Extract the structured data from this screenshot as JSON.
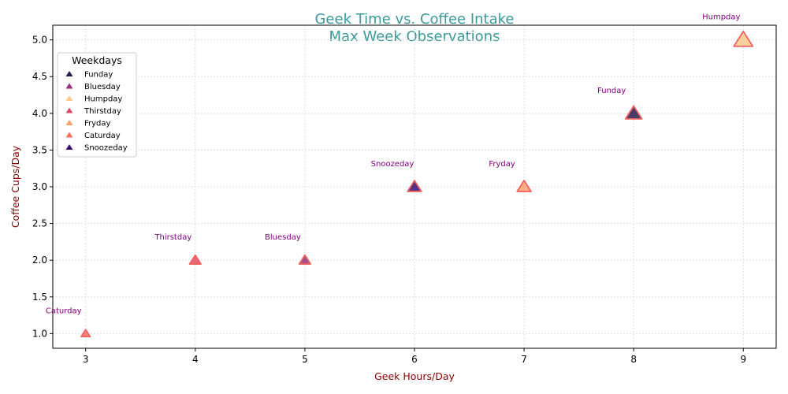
{
  "chart_data": {
    "type": "scatter",
    "title": "Geek Time vs. Coffee Intake",
    "subtitle": "Max Week Observations",
    "xlabel": "Geek Hours/Day",
    "ylabel": "Coffee Cups/Day",
    "xlim": [
      2.7,
      9.3
    ],
    "ylim": [
      0.8,
      5.2
    ],
    "xticks": [
      "3",
      "4",
      "5",
      "6",
      "7",
      "8",
      "9"
    ],
    "yticks": [
      "1.0",
      "1.5",
      "2.0",
      "2.5",
      "3.0",
      "3.5",
      "4.0",
      "4.5",
      "5.0"
    ],
    "grid": true,
    "legend_title": "Weekdays",
    "legend_placement": "top-left",
    "series": [
      {
        "name": "Funday",
        "x": 8,
        "y": 4,
        "color": "#2d1b4e"
      },
      {
        "name": "Bluesday",
        "x": 5,
        "y": 2,
        "color": "#9b2f7f"
      },
      {
        "name": "Humpday",
        "x": 9,
        "y": 5,
        "color": "#fdc98d"
      },
      {
        "name": "Thirstday",
        "x": 4,
        "y": 2,
        "color": "#e14d66"
      },
      {
        "name": "Fryday",
        "x": 7,
        "y": 3,
        "color": "#fea16e"
      },
      {
        "name": "Caturday",
        "x": 3,
        "y": 1,
        "color": "#f7705c"
      },
      {
        "name": "Snoozeday",
        "x": 6,
        "y": 3,
        "color": "#3b0f70"
      }
    ],
    "marker_edge_color": "#f0605d"
  }
}
